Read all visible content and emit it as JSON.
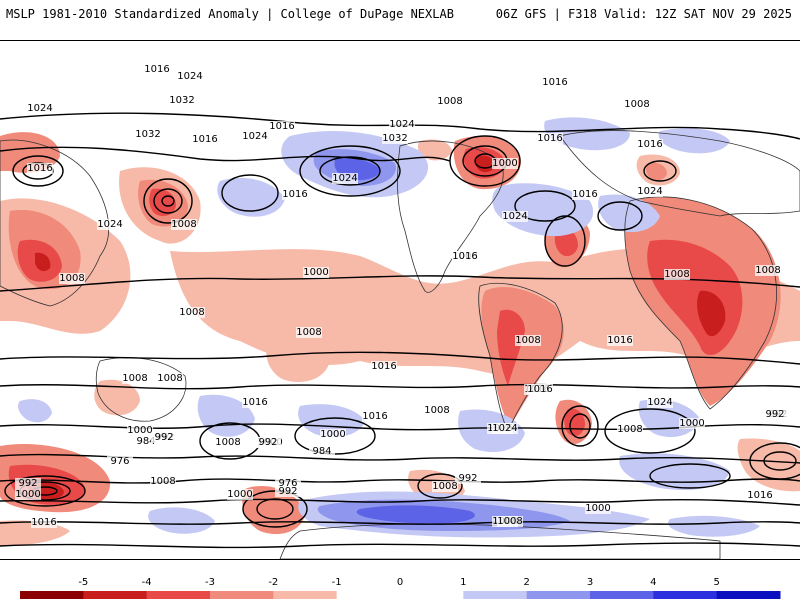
{
  "header": {
    "left_title": "MSLP 1981-2010 Standardized Anomaly | College of DuPage NEXLAB",
    "right_title": "06Z GFS | F318 Valid: 12Z SAT NOV 29 2025"
  },
  "colors": {
    "neg_5": "#8b0000",
    "neg_4": "#c81e1e",
    "neg_3": "#e84a4a",
    "neg_2": "#f08a7a",
    "neg_1": "#f7b9a8",
    "zero": "#ffffff",
    "pos_1": "#c4c8f4",
    "pos_2": "#8f96ee",
    "pos_3": "#5d63e6",
    "pos_4": "#2b31df",
    "pos_5": "#0a0fc0",
    "contour": "#000000",
    "border": "#333333"
  },
  "colorbar": {
    "ticks": [
      "-5",
      "-4",
      "-3",
      "-2",
      "-1",
      "0",
      "1",
      "2",
      "3",
      "4",
      "5"
    ]
  },
  "isobar_labels": [
    "1016",
    "1024",
    "1032",
    "1024",
    "1032",
    "1016",
    "1016",
    "1024",
    "1008",
    "1024",
    "1016",
    "1032",
    "1024",
    "1016",
    "1008",
    "1000",
    "1016",
    "1008",
    "1016",
    "1024",
    "1016",
    "1024",
    "1016",
    "1024",
    "1008",
    "1000",
    "1008",
    "1008",
    "1016",
    "1008",
    "1008",
    "1016",
    "1008",
    "1008",
    "1016",
    "1008",
    "1008",
    "1016",
    "1016",
    "1016",
    "1024",
    "1016",
    "1024",
    "1016",
    "1008",
    "1000",
    "1008",
    "1000",
    "992",
    "984",
    "992",
    "976",
    "1000",
    "1008",
    "992",
    "992",
    "984",
    "976",
    "992",
    "1000",
    "1000",
    "1008",
    "992",
    "1008",
    "1000",
    "992",
    "1008",
    "1016",
    "1000",
    "1016",
    "1008",
    "992"
  ]
}
